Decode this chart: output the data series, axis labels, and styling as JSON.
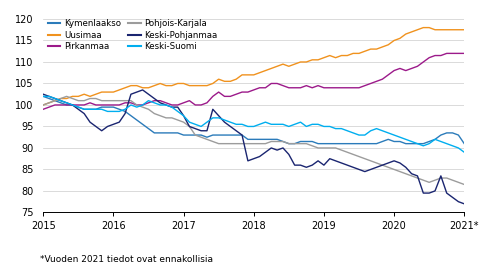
{
  "footnote": "*Vuoden 2021 tiedot ovat ennakollisia",
  "ylim": [
    75,
    120
  ],
  "yticks": [
    75,
    80,
    85,
    90,
    95,
    100,
    105,
    110,
    115,
    120
  ],
  "background_color": "#ffffff",
  "series": {
    "Kymenlaakso": {
      "color": "#2b7bba",
      "data": [
        102.0,
        101.5,
        101.0,
        100.5,
        100.0,
        100.0,
        99.5,
        99.0,
        99.0,
        99.0,
        99.5,
        99.5,
        99.5,
        99.0,
        98.5,
        97.5,
        96.5,
        95.5,
        94.5,
        93.5,
        93.5,
        93.5,
        93.5,
        93.5,
        93.0,
        93.0,
        93.0,
        93.0,
        92.5,
        93.0,
        93.0,
        93.0,
        93.0,
        93.0,
        93.0,
        92.0,
        92.0,
        92.0,
        92.0,
        92.0,
        92.0,
        91.5,
        91.0,
        91.0,
        91.5,
        91.5,
        91.5,
        91.0,
        91.0,
        91.0,
        91.0,
        91.0,
        91.0,
        91.0,
        91.0,
        91.0,
        91.0,
        91.0,
        91.5,
        92.0,
        91.5,
        91.5,
        91.0,
        91.0,
        91.0,
        91.0,
        91.5,
        92.0,
        93.0,
        93.5,
        93.5,
        93.0,
        91.0
      ]
    },
    "Uusimaa": {
      "color": "#f0921e",
      "data": [
        100.0,
        100.5,
        101.0,
        101.5,
        101.5,
        102.0,
        102.0,
        102.5,
        102.0,
        102.5,
        103.0,
        103.0,
        103.0,
        103.5,
        104.0,
        104.5,
        104.5,
        104.0,
        104.0,
        104.5,
        105.0,
        104.5,
        104.5,
        105.0,
        105.0,
        104.5,
        104.5,
        104.5,
        104.5,
        105.0,
        106.0,
        105.5,
        105.5,
        106.0,
        107.0,
        107.0,
        107.0,
        107.5,
        108.0,
        108.5,
        109.0,
        109.5,
        109.0,
        109.5,
        110.0,
        110.0,
        110.5,
        110.5,
        111.0,
        111.5,
        111.0,
        111.5,
        111.5,
        112.0,
        112.0,
        112.5,
        113.0,
        113.0,
        113.5,
        114.0,
        115.0,
        115.5,
        116.5,
        117.0,
        117.5,
        118.0,
        118.0,
        117.5,
        117.5,
        117.5,
        117.5,
        117.5,
        117.5
      ]
    },
    "Pirkanmaa": {
      "color": "#9c1a8a",
      "data": [
        99.0,
        99.5,
        100.0,
        100.0,
        100.0,
        100.0,
        100.0,
        100.0,
        100.5,
        100.0,
        100.0,
        100.0,
        100.0,
        100.0,
        100.5,
        100.5,
        100.0,
        100.0,
        100.5,
        101.0,
        101.0,
        100.5,
        100.0,
        100.0,
        100.5,
        101.0,
        100.0,
        100.0,
        100.5,
        102.0,
        103.0,
        102.0,
        102.0,
        102.5,
        103.0,
        103.0,
        103.5,
        104.0,
        104.0,
        105.0,
        105.0,
        104.5,
        104.0,
        104.0,
        104.0,
        104.5,
        104.0,
        104.5,
        104.0,
        104.0,
        104.0,
        104.0,
        104.0,
        104.0,
        104.0,
        104.5,
        105.0,
        105.5,
        106.0,
        107.0,
        108.0,
        108.5,
        108.0,
        108.5,
        109.0,
        110.0,
        111.0,
        111.5,
        111.5,
        112.0,
        112.0,
        112.0,
        112.0
      ]
    },
    "Pohjois-Karjala": {
      "color": "#9c9c9c",
      "data": [
        100.0,
        100.5,
        101.0,
        101.5,
        102.0,
        101.5,
        101.0,
        101.0,
        101.5,
        101.5,
        101.0,
        101.0,
        101.0,
        101.0,
        101.0,
        101.0,
        100.0,
        99.5,
        99.0,
        98.0,
        97.5,
        97.0,
        97.0,
        96.5,
        96.0,
        95.0,
        93.0,
        92.5,
        92.0,
        91.5,
        91.0,
        91.0,
        91.0,
        91.0,
        91.0,
        91.0,
        91.0,
        91.0,
        91.0,
        91.5,
        91.5,
        91.5,
        91.0,
        91.0,
        91.0,
        91.0,
        90.5,
        90.0,
        90.0,
        90.0,
        90.0,
        89.5,
        89.0,
        88.5,
        88.0,
        87.5,
        87.0,
        86.5,
        86.0,
        85.5,
        85.0,
        84.5,
        84.0,
        83.5,
        83.0,
        82.5,
        82.0,
        82.5,
        83.0,
        83.0,
        82.5,
        82.0,
        81.5
      ]
    },
    "Keski-Pohjanmaa": {
      "color": "#1a2570",
      "data": [
        102.5,
        102.0,
        101.5,
        101.0,
        100.5,
        100.0,
        99.0,
        98.0,
        96.0,
        95.0,
        94.0,
        95.0,
        95.5,
        96.0,
        98.0,
        102.5,
        103.0,
        103.5,
        102.5,
        101.5,
        100.5,
        100.0,
        99.5,
        99.5,
        97.5,
        95.0,
        94.5,
        94.0,
        94.0,
        99.0,
        97.5,
        96.0,
        95.0,
        94.0,
        93.0,
        87.0,
        87.5,
        88.0,
        89.0,
        90.0,
        89.5,
        90.0,
        88.5,
        86.0,
        86.0,
        85.5,
        86.0,
        87.0,
        86.0,
        87.5,
        87.0,
        86.5,
        86.0,
        85.5,
        85.0,
        84.5,
        85.0,
        85.5,
        86.0,
        86.5,
        87.0,
        86.5,
        85.5,
        84.0,
        83.5,
        79.5,
        79.5,
        80.0,
        83.5,
        79.5,
        78.5,
        77.5,
        77.0
      ]
    },
    "Keski-Suomi": {
      "color": "#00aeef",
      "data": [
        102.0,
        102.0,
        101.5,
        101.0,
        100.5,
        100.0,
        99.5,
        99.0,
        99.0,
        99.0,
        99.0,
        98.5,
        98.5,
        98.5,
        99.0,
        100.0,
        99.5,
        100.0,
        101.0,
        100.5,
        100.0,
        100.0,
        99.5,
        98.5,
        97.5,
        96.0,
        95.5,
        95.0,
        96.0,
        97.0,
        97.0,
        96.5,
        96.0,
        95.5,
        95.5,
        95.0,
        95.0,
        95.5,
        96.0,
        95.5,
        95.5,
        95.5,
        95.0,
        95.5,
        96.0,
        95.0,
        95.5,
        95.5,
        95.0,
        95.0,
        94.5,
        94.5,
        94.0,
        93.5,
        93.0,
        93.0,
        94.0,
        94.5,
        94.0,
        93.5,
        93.0,
        92.5,
        92.0,
        91.5,
        91.0,
        90.5,
        91.0,
        92.0,
        91.5,
        91.0,
        90.5,
        90.0,
        89.0
      ]
    }
  },
  "xtick_positions": [
    0,
    12,
    24,
    36,
    48,
    60,
    72
  ],
  "xtick_labels": [
    "2015",
    "2016",
    "2017",
    "2018",
    "2019",
    "2020",
    "2021*"
  ],
  "legend_cols": [
    [
      "Kymenlaakso",
      "Pirkanmaa",
      "Keski-Pohjanmaa"
    ],
    [
      "Uusimaa",
      "Pohjois-Karjala",
      "Keski-Suomi"
    ]
  ]
}
